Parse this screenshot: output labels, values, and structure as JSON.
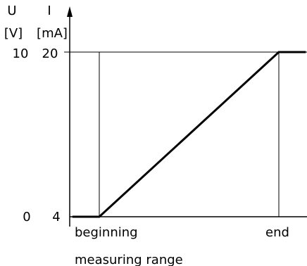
{
  "chart_data": {
    "type": "line",
    "y_axis_left": {
      "quantity": "U",
      "unit": "[V]",
      "ticks": [
        "0",
        "10"
      ]
    },
    "y_axis_right": {
      "quantity": "I",
      "unit": "[mA]",
      "ticks": [
        "4",
        "20"
      ],
      "range": [
        4,
        20
      ]
    },
    "x_tick_labels": [
      "beginning",
      "end"
    ],
    "xlabel": "measuring range",
    "x_domain": [
      -0.15,
      1.15
    ],
    "series": [
      {
        "x": [
          -0.15,
          0,
          1,
          1.15
        ],
        "y": [
          4,
          4,
          20,
          20
        ]
      }
    ],
    "reference_lines": {
      "horizontal_at": 20,
      "vertical_at": [
        0,
        1
      ]
    },
    "colors": {
      "line": "#000000",
      "axis": "#000000"
    }
  }
}
